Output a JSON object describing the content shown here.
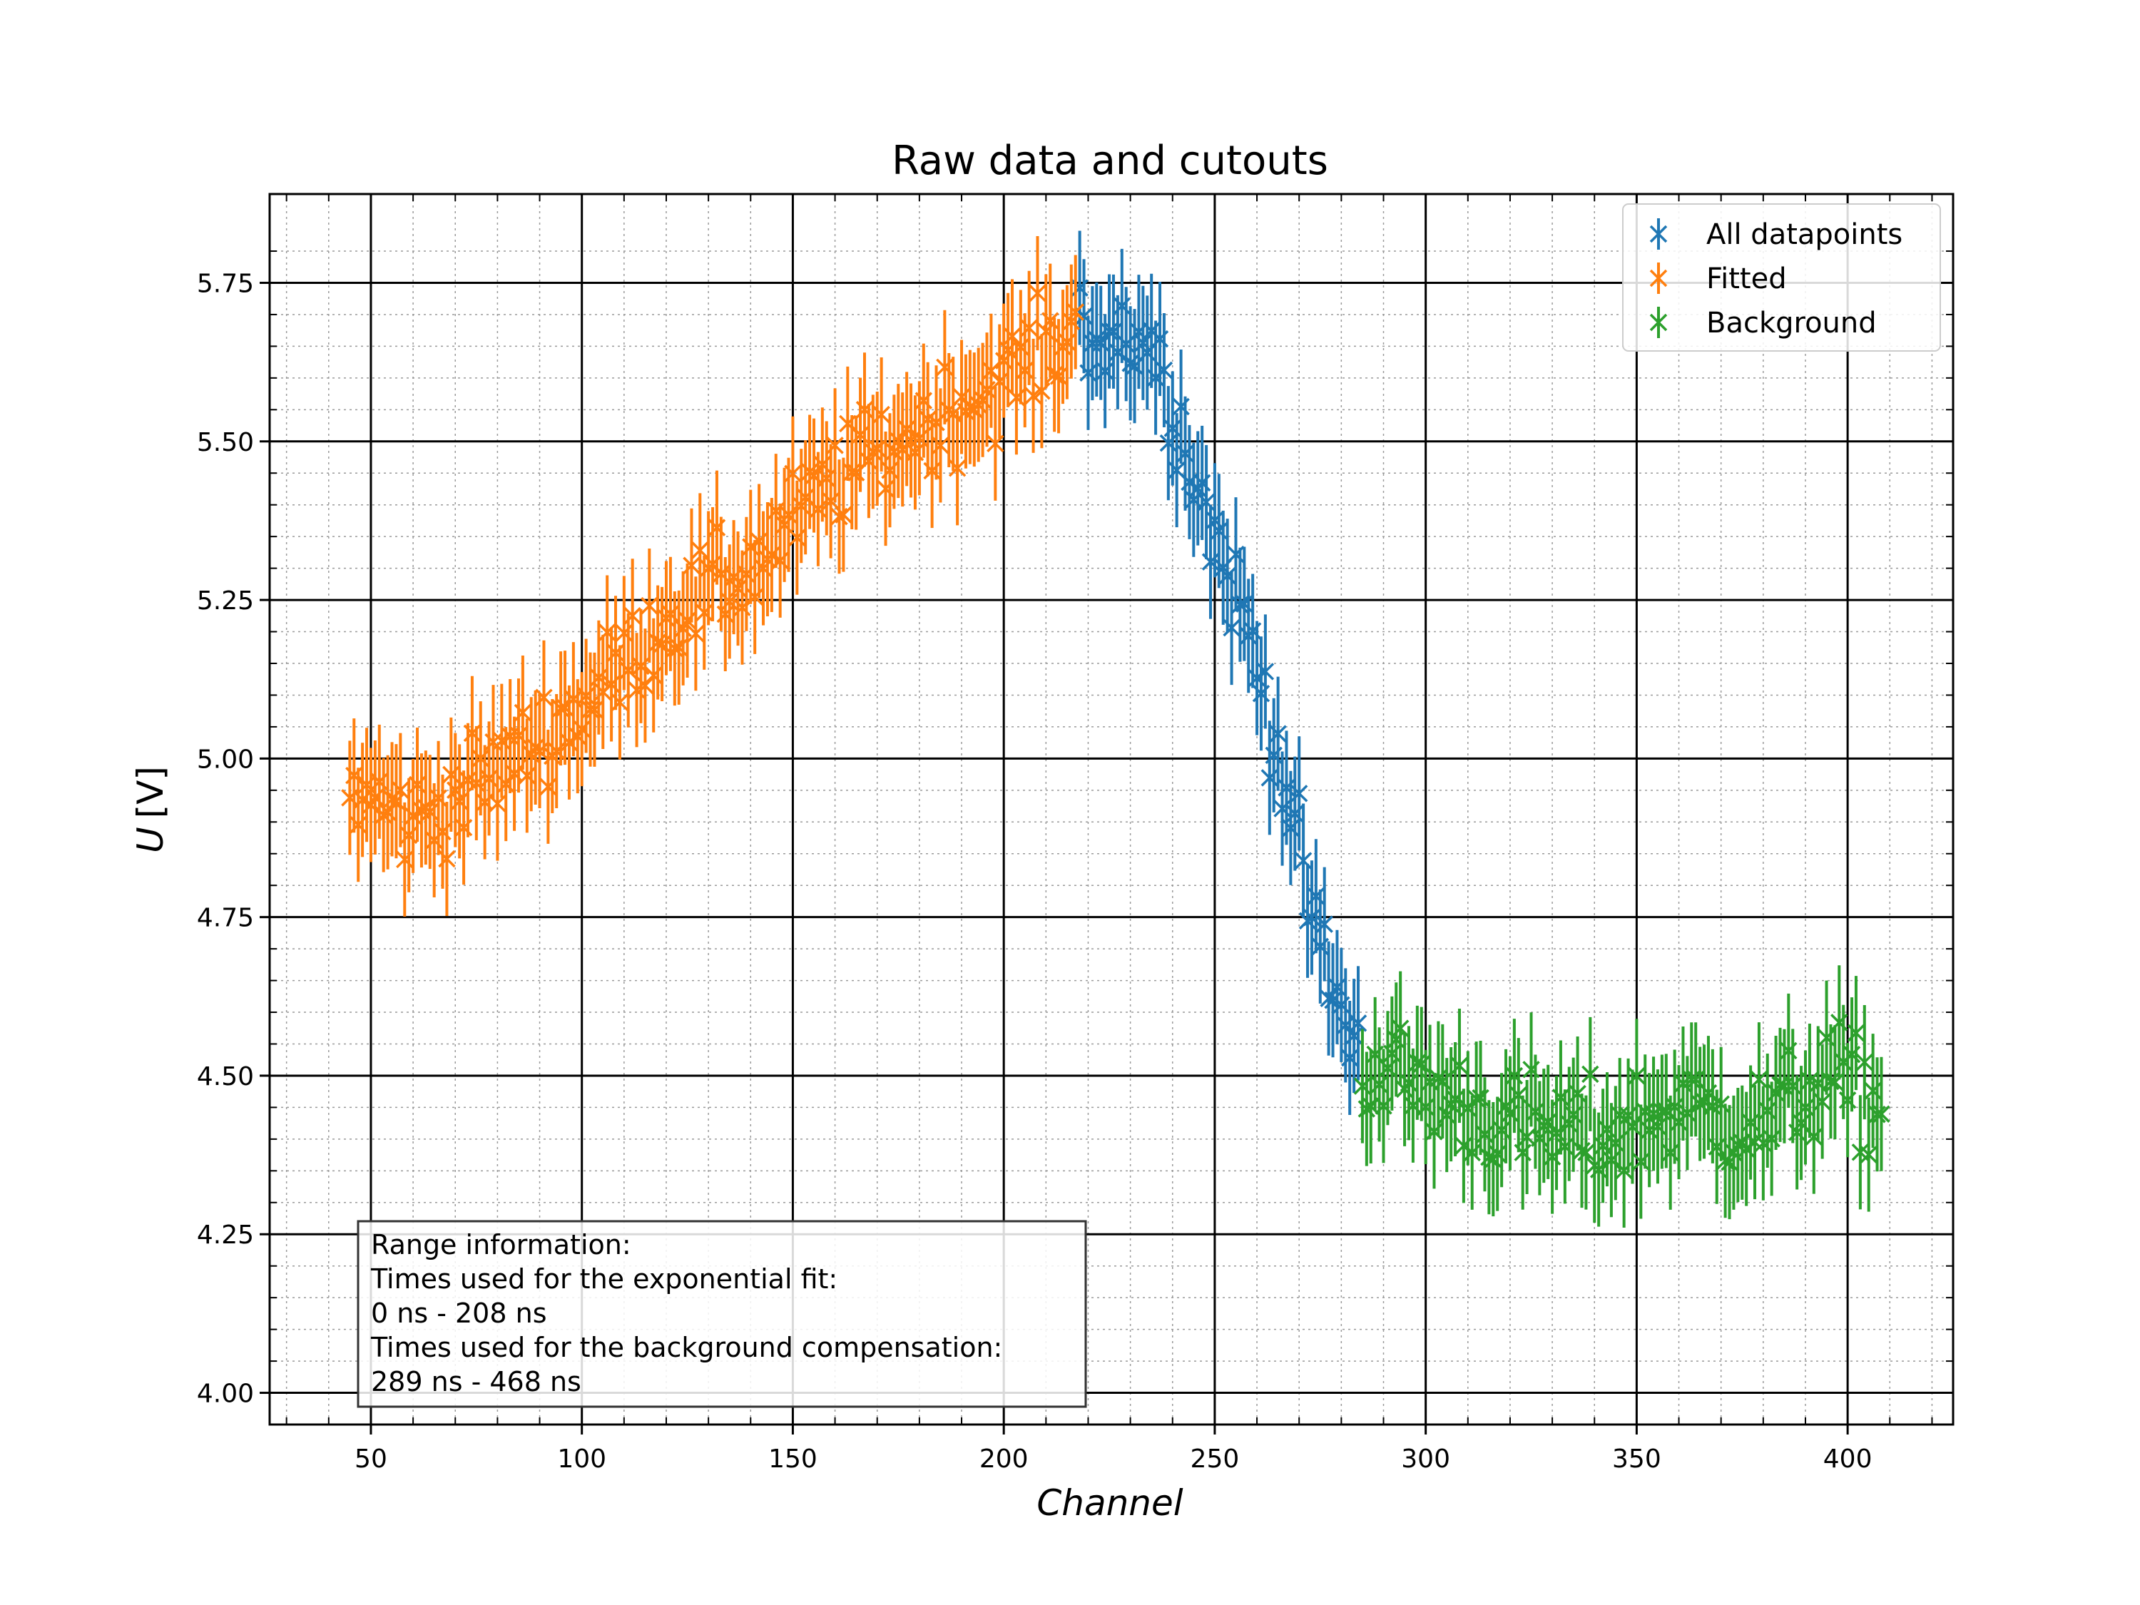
{
  "chart_data": {
    "type": "scatter",
    "title": "Raw data and cutouts",
    "xlabel": "Channel",
    "ylabel_symbol": "U",
    "ylabel_unit": "[V]",
    "xlim": [
      26,
      425
    ],
    "ylim": [
      3.95,
      5.89
    ],
    "xticks": [
      50,
      100,
      150,
      200,
      250,
      300,
      350,
      400
    ],
    "yticks": [
      4.0,
      4.25,
      4.5,
      4.75,
      5.0,
      5.25,
      5.5,
      5.75
    ],
    "grid": {
      "major": true,
      "minor": true
    },
    "legend": {
      "placement": "top-right"
    },
    "yerr": 0.09,
    "series": [
      {
        "name": "All datapoints",
        "color": "#1f77b4",
        "x_range": [
          45,
          284
        ],
        "anchors": [
          [
            45,
            4.95
          ],
          [
            60,
            4.9
          ],
          [
            80,
            4.98
          ],
          [
            100,
            5.08
          ],
          [
            120,
            5.22
          ],
          [
            140,
            5.3
          ],
          [
            160,
            5.44
          ],
          [
            180,
            5.52
          ],
          [
            200,
            5.6
          ],
          [
            215,
            5.67
          ],
          [
            225,
            5.68
          ],
          [
            235,
            5.66
          ],
          [
            242,
            5.52
          ],
          [
            250,
            5.35
          ],
          [
            258,
            5.2
          ],
          [
            265,
            5.02
          ],
          [
            272,
            4.78
          ],
          [
            278,
            4.62
          ],
          [
            284,
            4.55
          ]
        ]
      },
      {
        "name": "Fitted",
        "color": "#ff7f0e",
        "x_range": [
          45,
          217
        ],
        "anchors": [
          [
            45,
            4.95
          ],
          [
            60,
            4.9
          ],
          [
            80,
            4.98
          ],
          [
            100,
            5.08
          ],
          [
            120,
            5.22
          ],
          [
            140,
            5.3
          ],
          [
            160,
            5.44
          ],
          [
            180,
            5.52
          ],
          [
            200,
            5.6
          ],
          [
            217,
            5.67
          ]
        ]
      },
      {
        "name": "Background",
        "color": "#2ca02c",
        "x_range": [
          285,
          408
        ],
        "anchors": [
          [
            285,
            4.52
          ],
          [
            300,
            4.48
          ],
          [
            320,
            4.42
          ],
          [
            340,
            4.4
          ],
          [
            360,
            4.45
          ],
          [
            380,
            4.42
          ],
          [
            395,
            4.5
          ],
          [
            408,
            4.45
          ]
        ]
      }
    ],
    "info_box": {
      "lines": [
        "Range information:",
        "Times used for the exponential fit:",
        "0 ns - 208 ns",
        "Times used for the background compensation:",
        "289 ns - 468 ns"
      ]
    }
  }
}
